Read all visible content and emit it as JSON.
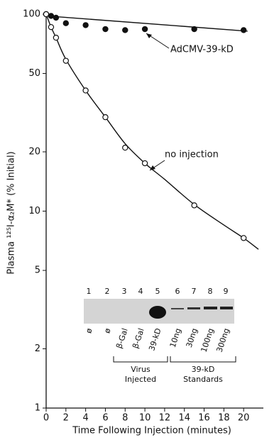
{
  "chart_data": {
    "type": "scatter",
    "x_label": "Time Following Injection (minutes)",
    "y_label": "Plasma ¹²⁵I-α₂M* (% Initial)",
    "log_y": true,
    "xlim": [
      0,
      22
    ],
    "xticks": [
      0,
      2,
      4,
      6,
      8,
      10,
      12,
      14,
      16,
      18,
      20
    ],
    "ylim": [
      1,
      100
    ],
    "yticks": [
      1,
      2,
      5,
      10,
      20,
      50,
      100
    ],
    "series": [
      {
        "name": "AdCMV-39-kD",
        "color": "#111111",
        "filled": true,
        "x": [
          0,
          0.5,
          1,
          2,
          4,
          6,
          8,
          10,
          15,
          20
        ],
        "values": [
          100,
          98,
          96,
          90,
          88,
          84,
          83,
          84,
          84,
          83
        ],
        "curve": {
          "x": [
            0,
            20.4
          ],
          "values": [
            98,
            82
          ]
        }
      },
      {
        "name": "no injection",
        "color": "#111111",
        "filled": false,
        "x": [
          0,
          0.5,
          1,
          2,
          4,
          6,
          8,
          10,
          15,
          20
        ],
        "values": [
          100,
          86,
          76,
          58,
          41,
          30,
          21,
          17.5,
          10.7,
          7.3
        ],
        "curve": {
          "x": [
            0,
            0.5,
            1,
            2,
            4,
            6,
            8,
            10,
            12,
            15,
            18,
            20,
            21.5
          ],
          "values": [
            100,
            86,
            76,
            59,
            41,
            30,
            22,
            17.5,
            14.5,
            10.8,
            8.5,
            7.3,
            6.4
          ]
        }
      }
    ],
    "inset": {
      "lanes": [
        "1",
        "2",
        "3",
        "4",
        "5",
        "6",
        "7",
        "8",
        "9"
      ],
      "lane_labels": [
        "ø",
        "ø",
        "β-Gal",
        "β-Gal",
        "39-kD",
        "10ng",
        "30ng",
        "100ng",
        "300ng"
      ],
      "groups": [
        {
          "line1": "Virus",
          "line2": "Injected"
        },
        {
          "line1": "39-kD",
          "line2": "Standards"
        }
      ]
    }
  }
}
